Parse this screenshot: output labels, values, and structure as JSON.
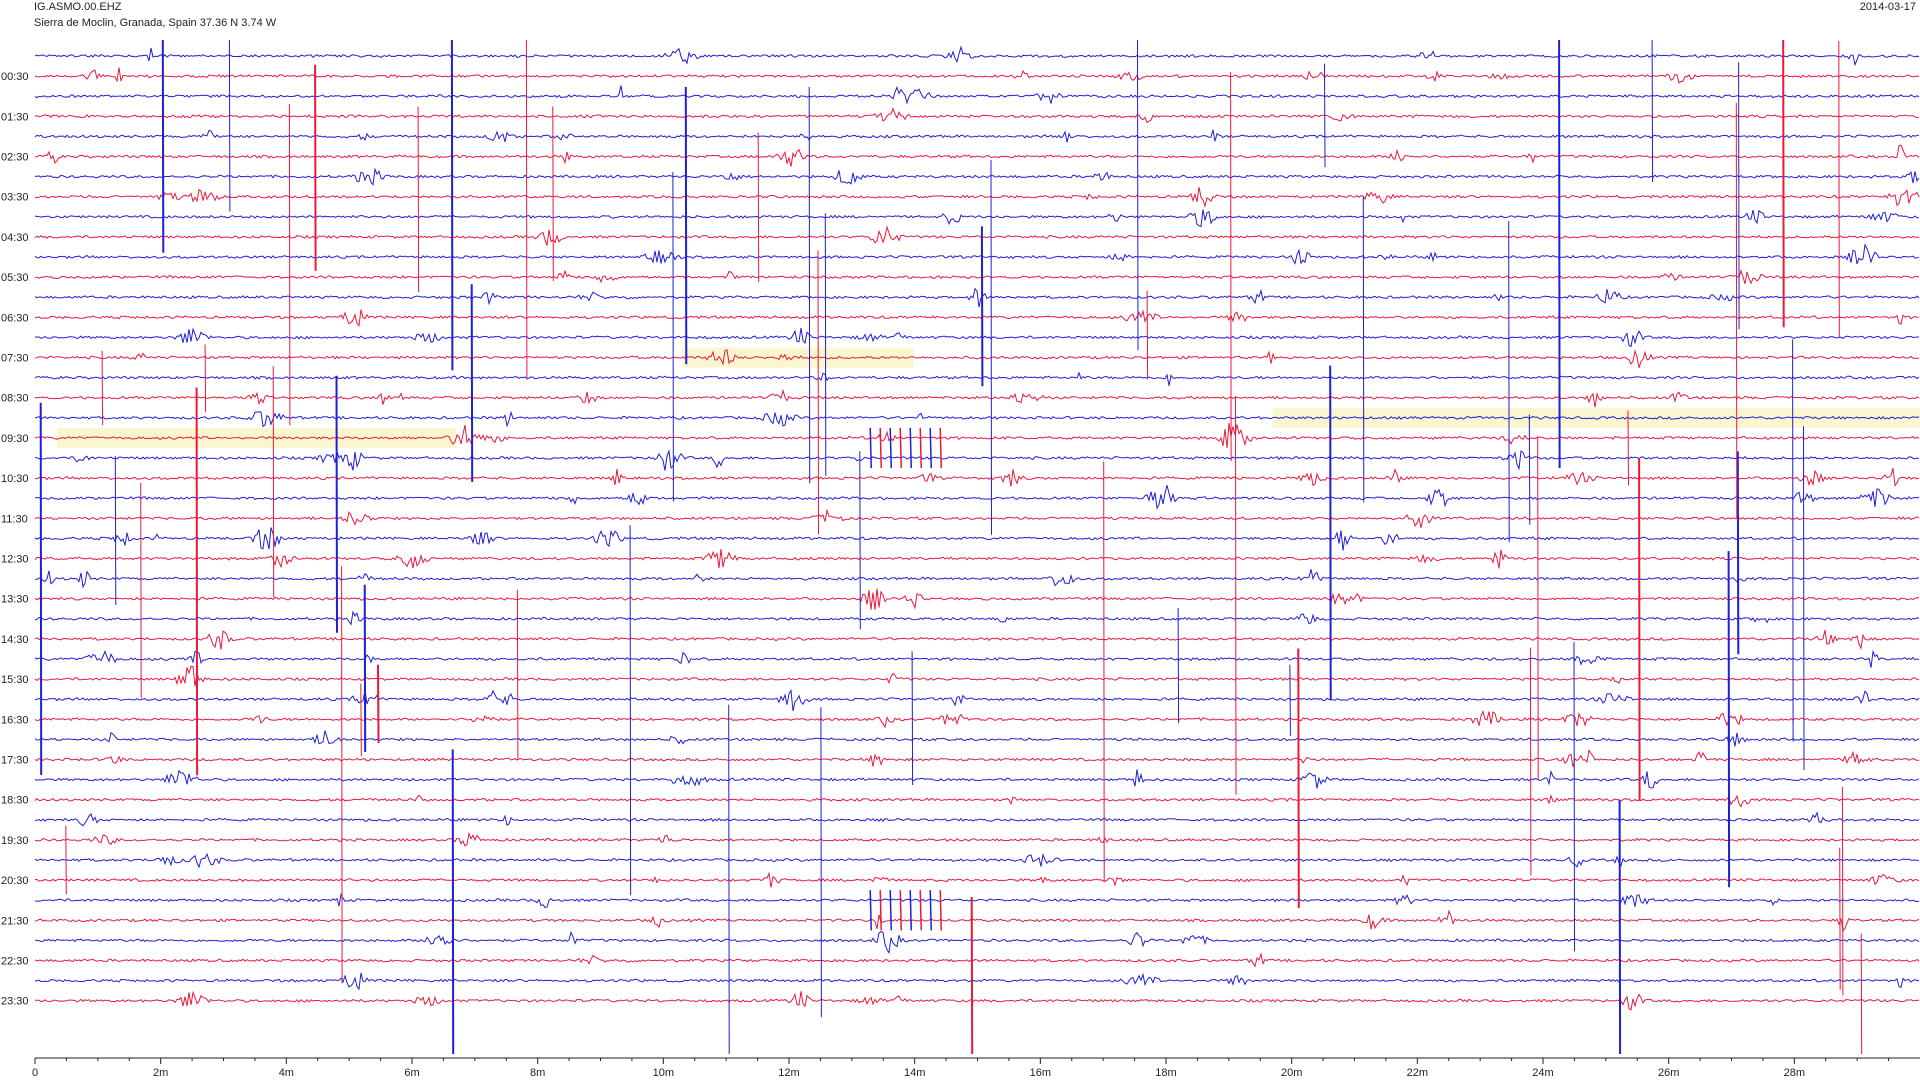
{
  "header": {
    "station": "IG.ASMO.00.EHZ",
    "location": "Sierra de Moclin, Granada, Spain  37.36 N 3.74 W",
    "date": "2014-03-17"
  },
  "colors": {
    "trace_a": "#1f1fd6",
    "trace_b": "#e8193b",
    "gap": "#faf6cf",
    "axis": "#222222"
  },
  "chart_data": {
    "type": "line",
    "title": "IG.ASMO.00.EHZ",
    "subtitle": "Sierra de Moclin, Granada, Spain  37.36 N 3.74 W",
    "date": "2014-03-17",
    "x_unit": "minutes",
    "xlim": [
      0,
      30
    ],
    "x_ticks": [
      0,
      2,
      4,
      6,
      8,
      10,
      12,
      14,
      16,
      18,
      20,
      22,
      24,
      26,
      28
    ],
    "x_tick_labels": [
      "0",
      "2m",
      "4m",
      "6m",
      "8m",
      "10m",
      "12m",
      "14m",
      "16m",
      "18m",
      "20m",
      "22m",
      "24m",
      "26m",
      "28m"
    ],
    "row_minutes": 30,
    "row_count": 48,
    "row_colors": [
      "blue",
      "red"
    ],
    "y_tick_labels": [
      "00:30",
      "01:30",
      "02:30",
      "03:30",
      "04:30",
      "05:30",
      "06:30",
      "07:30",
      "08:30",
      "09:30",
      "10:30",
      "11:30",
      "12:30",
      "13:30",
      "14:30",
      "15:30",
      "16:30",
      "17:30",
      "18:30",
      "19:30",
      "20:30",
      "21:30",
      "22:30",
      "23:30"
    ],
    "grid": false,
    "legend": "none",
    "gaps": [
      {
        "row": 15,
        "x_start": 10.3,
        "x_end": 13.98
      },
      {
        "row": 19,
        "x_start": 0.35,
        "x_end": 6.7
      },
      {
        "row": 18,
        "x_start": 19.7,
        "x_end": 30.0
      }
    ],
    "events": [
      {
        "x": 13.85,
        "row_start": 18.5,
        "row_end": 20.5,
        "amp": 0.6
      },
      {
        "x": 13.85,
        "row_start": 41.5,
        "row_end": 43.5,
        "amp": 0.6
      }
    ]
  }
}
